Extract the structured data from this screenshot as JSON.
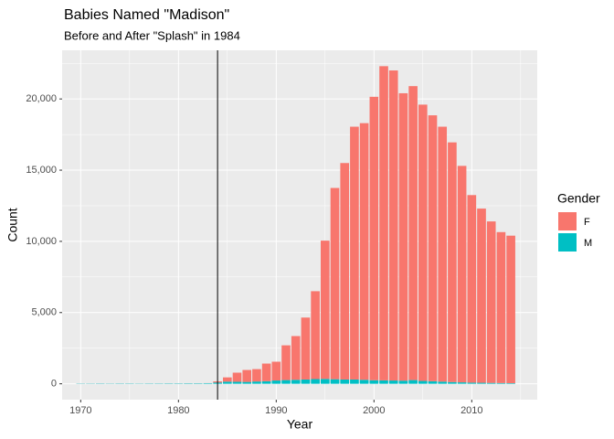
{
  "chart_data": {
    "type": "bar",
    "stacked": true,
    "title": "Babies Named \"Madison\"",
    "subtitle": "Before and After \"Splash\" in 1984",
    "x_label": "Year",
    "y_label": "Count",
    "legend_title": "Gender",
    "x": [
      1970,
      1971,
      1972,
      1973,
      1974,
      1975,
      1976,
      1977,
      1978,
      1979,
      1980,
      1981,
      1982,
      1983,
      1984,
      1985,
      1986,
      1987,
      1988,
      1989,
      1990,
      1991,
      1992,
      1993,
      1994,
      1995,
      1996,
      1997,
      1998,
      1999,
      2000,
      2001,
      2002,
      2003,
      2004,
      2005,
      2006,
      2007,
      2008,
      2009,
      2010,
      2011,
      2012,
      2013,
      2014
    ],
    "series": [
      {
        "name": "M",
        "color": "#00BFC4",
        "values": [
          20,
          20,
          25,
          20,
          25,
          25,
          20,
          25,
          25,
          30,
          30,
          35,
          35,
          40,
          90,
          150,
          140,
          130,
          160,
          180,
          230,
          260,
          280,
          300,
          330,
          340,
          320,
          300,
          300,
          280,
          250,
          240,
          230,
          220,
          260,
          200,
          180,
          150,
          120,
          100,
          80,
          70,
          60,
          50,
          40
        ]
      },
      {
        "name": "F",
        "color": "#F8766D",
        "values": [
          5,
          5,
          5,
          5,
          5,
          5,
          5,
          5,
          5,
          5,
          5,
          5,
          5,
          5,
          80,
          300,
          640,
          840,
          870,
          1240,
          1320,
          2440,
          3070,
          4350,
          6170,
          9710,
          13430,
          15200,
          17750,
          18020,
          19900,
          22060,
          21770,
          20180,
          20640,
          19400,
          18670,
          17900,
          16830,
          15200,
          13170,
          12230,
          11340,
          10600,
          10360
        ]
      }
    ],
    "legend_order": [
      1,
      0
    ],
    "vline": 1984,
    "xlim": [
      1968.1,
      2016.7
    ],
    "xticks": [
      1970,
      1980,
      1990,
      2000,
      2010
    ],
    "ylim": [
      -1115,
      23415
    ],
    "yticks": [
      0,
      {
        "value": 5000,
        "label": "5,000"
      },
      {
        "value": 10000,
        "label": "10,000"
      },
      {
        "value": 15000,
        "label": "15,000"
      },
      {
        "value": 20000,
        "label": "20,000"
      }
    ],
    "grid": true
  }
}
